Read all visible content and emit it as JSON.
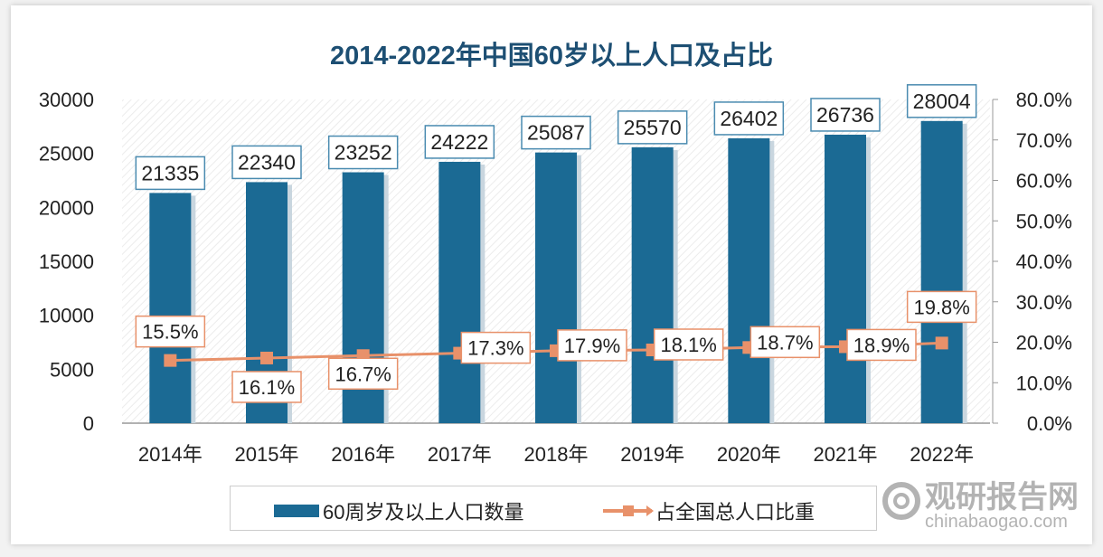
{
  "chart_data": {
    "type": "bar+line",
    "title": "2014-2022年中国60岁以上人口及占比",
    "categories": [
      "2014年",
      "2015年",
      "2016年",
      "2017年",
      "2018年",
      "2019年",
      "2020年",
      "2021年",
      "2022年"
    ],
    "series": [
      {
        "name": "60周岁及以上人口数量",
        "type": "bar",
        "axis": "left",
        "color": "#1b6a94",
        "values": [
          21335,
          22340,
          23252,
          24222,
          25087,
          25570,
          26402,
          26736,
          28004
        ],
        "labels": [
          "21335",
          "22340",
          "23252",
          "24222",
          "25087",
          "25570",
          "26402",
          "26736",
          "28004"
        ]
      },
      {
        "name": "占全国总人口比重",
        "type": "line",
        "axis": "right",
        "color": "#e8916a",
        "marker": "square",
        "values": [
          15.5,
          16.1,
          16.7,
          17.3,
          17.9,
          18.1,
          18.7,
          18.9,
          19.8
        ],
        "labels": [
          "15.5%",
          "16.1%",
          "16.7%",
          "17.3%",
          "17.9%",
          "18.1%",
          "18.7%",
          "18.9%",
          "19.8%"
        ]
      }
    ],
    "y_left": {
      "range": [
        0,
        30000
      ],
      "ticks": [
        "0",
        "5000",
        "10000",
        "15000",
        "20000",
        "25000",
        "30000"
      ]
    },
    "y_right": {
      "range": [
        0,
        80
      ],
      "ticks": [
        "0.0%",
        "10.0%",
        "20.0%",
        "30.0%",
        "40.0%",
        "50.0%",
        "60.0%",
        "70.0%",
        "80.0%"
      ]
    },
    "grid": false,
    "legend": "bottom"
  },
  "watermark": {
    "cn": "观研报告网",
    "en": "chinabaogao.com"
  }
}
